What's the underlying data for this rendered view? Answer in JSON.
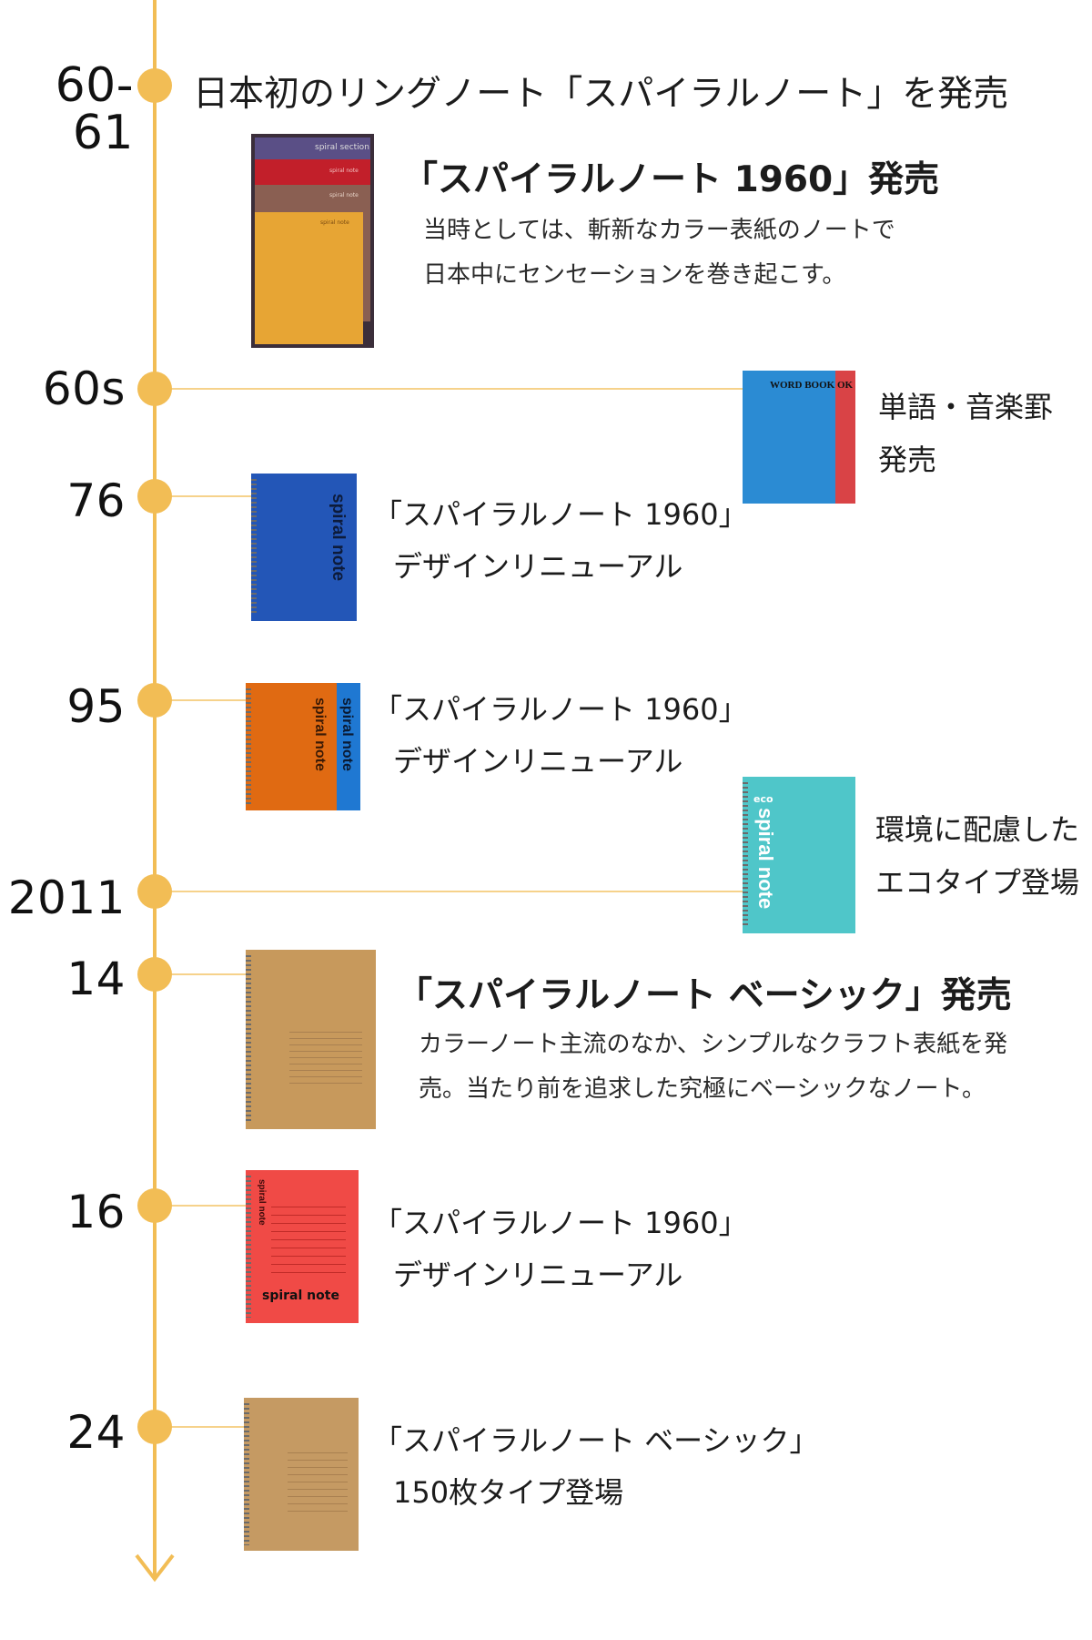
{
  "colors": {
    "timeline": "#f2bd55",
    "connector": "#f6d28b"
  },
  "timeline": [
    {
      "year": "60-61",
      "heading": "日本初のリングノート「スパイラルノート」を発売"
    },
    {
      "year": "",
      "heading": "「スパイラルノート 1960」発売",
      "description": [
        "当時としては、斬新なカラー表紙のノートで",
        "日本中にセンセーションを巻き起こす。"
      ],
      "image_labels": [
        "spiral section",
        "spiral note",
        "spiral note",
        "spiral note"
      ]
    },
    {
      "year": "60s",
      "label": [
        "単語・音楽罫",
        "発売"
      ],
      "image_labels": [
        "WORD BOOK",
        "OK"
      ]
    },
    {
      "year": "76",
      "label": [
        "「スパイラルノート 1960」",
        "デザインリニューアル"
      ],
      "image_labels": [
        "spiral note"
      ]
    },
    {
      "year": "95",
      "label": [
        "「スパイラルノート 1960」",
        "デザインリニューアル"
      ],
      "image_labels": [
        "spiral note",
        "spiral note"
      ]
    },
    {
      "year": "2011",
      "label": [
        "環境に配慮した",
        "エコタイプ登場"
      ],
      "image_labels": [
        "eco",
        "spiral note"
      ]
    },
    {
      "year": "14",
      "heading": "「スパイラルノート ベーシック」発売",
      "description": [
        "カラーノート主流のなか、シンプルなクラフト表紙を発",
        "売。当たり前を追求した究極にベーシックなノート。"
      ]
    },
    {
      "year": "16",
      "label": [
        "「スパイラルノート 1960」",
        "デザインリニューアル"
      ],
      "image_labels": [
        "spiral note",
        "spiral note"
      ]
    },
    {
      "year": "24",
      "label": [
        "「スパイラルノート ベーシック」",
        "150枚タイプ登場"
      ]
    }
  ]
}
